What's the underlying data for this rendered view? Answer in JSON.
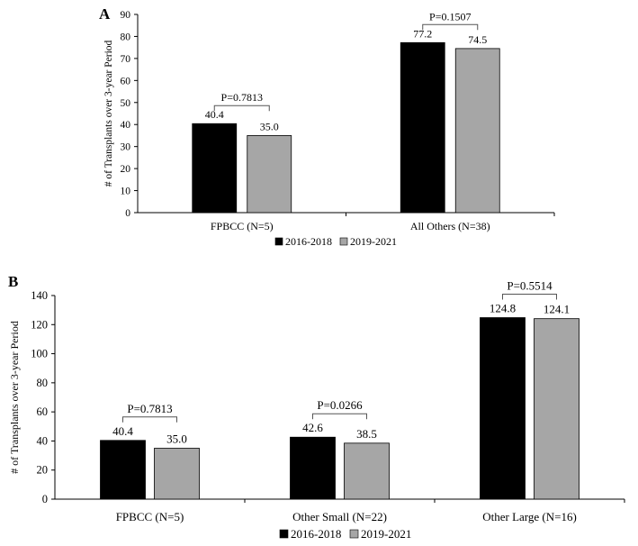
{
  "colors": {
    "series_2016": "#000000",
    "series_2019": "#a6a6a6",
    "axis": "#000000"
  },
  "chart_data": [
    {
      "panel": "A",
      "type": "bar",
      "ylabel": "# of Transplants over 3-year Period",
      "ylim": [
        0,
        90
      ],
      "yticks": [
        0,
        10,
        20,
        30,
        40,
        50,
        60,
        70,
        80,
        90
      ],
      "categories": [
        "FPBCC (N=5)",
        "All Others (N=38)"
      ],
      "series": [
        {
          "name": "2016-2018",
          "values": [
            40.4,
            77.2
          ],
          "labels": [
            "40.4",
            "77.2"
          ]
        },
        {
          "name": "2019-2021",
          "values": [
            35.0,
            74.5
          ],
          "labels": [
            "35.0",
            "74.5"
          ]
        }
      ],
      "p_values": [
        "P=0.7813",
        "P=0.1507"
      ],
      "legend": [
        "2016-2018",
        "2019-2021"
      ],
      "legend_position": "bottom"
    },
    {
      "panel": "B",
      "type": "bar",
      "ylabel": "# of Transplants over 3-year Period",
      "ylim": [
        0,
        140
      ],
      "yticks": [
        0,
        20,
        40,
        60,
        80,
        100,
        120,
        140
      ],
      "categories": [
        "FPBCC (N=5)",
        "Other Small (N=22)",
        "Other Large (N=16)"
      ],
      "series": [
        {
          "name": "2016-2018",
          "values": [
            40.4,
            42.6,
            124.8
          ],
          "labels": [
            "40.4",
            "42.6",
            "124.8"
          ]
        },
        {
          "name": "2019-2021",
          "values": [
            35.0,
            38.5,
            124.1
          ],
          "labels": [
            "35.0",
            "38.5",
            "124.1"
          ]
        }
      ],
      "p_values": [
        "P=0.7813",
        "P=0.0266",
        "P=0.5514"
      ],
      "legend": [
        "2016-2018",
        "2019-2021"
      ],
      "legend_position": "bottom"
    }
  ]
}
